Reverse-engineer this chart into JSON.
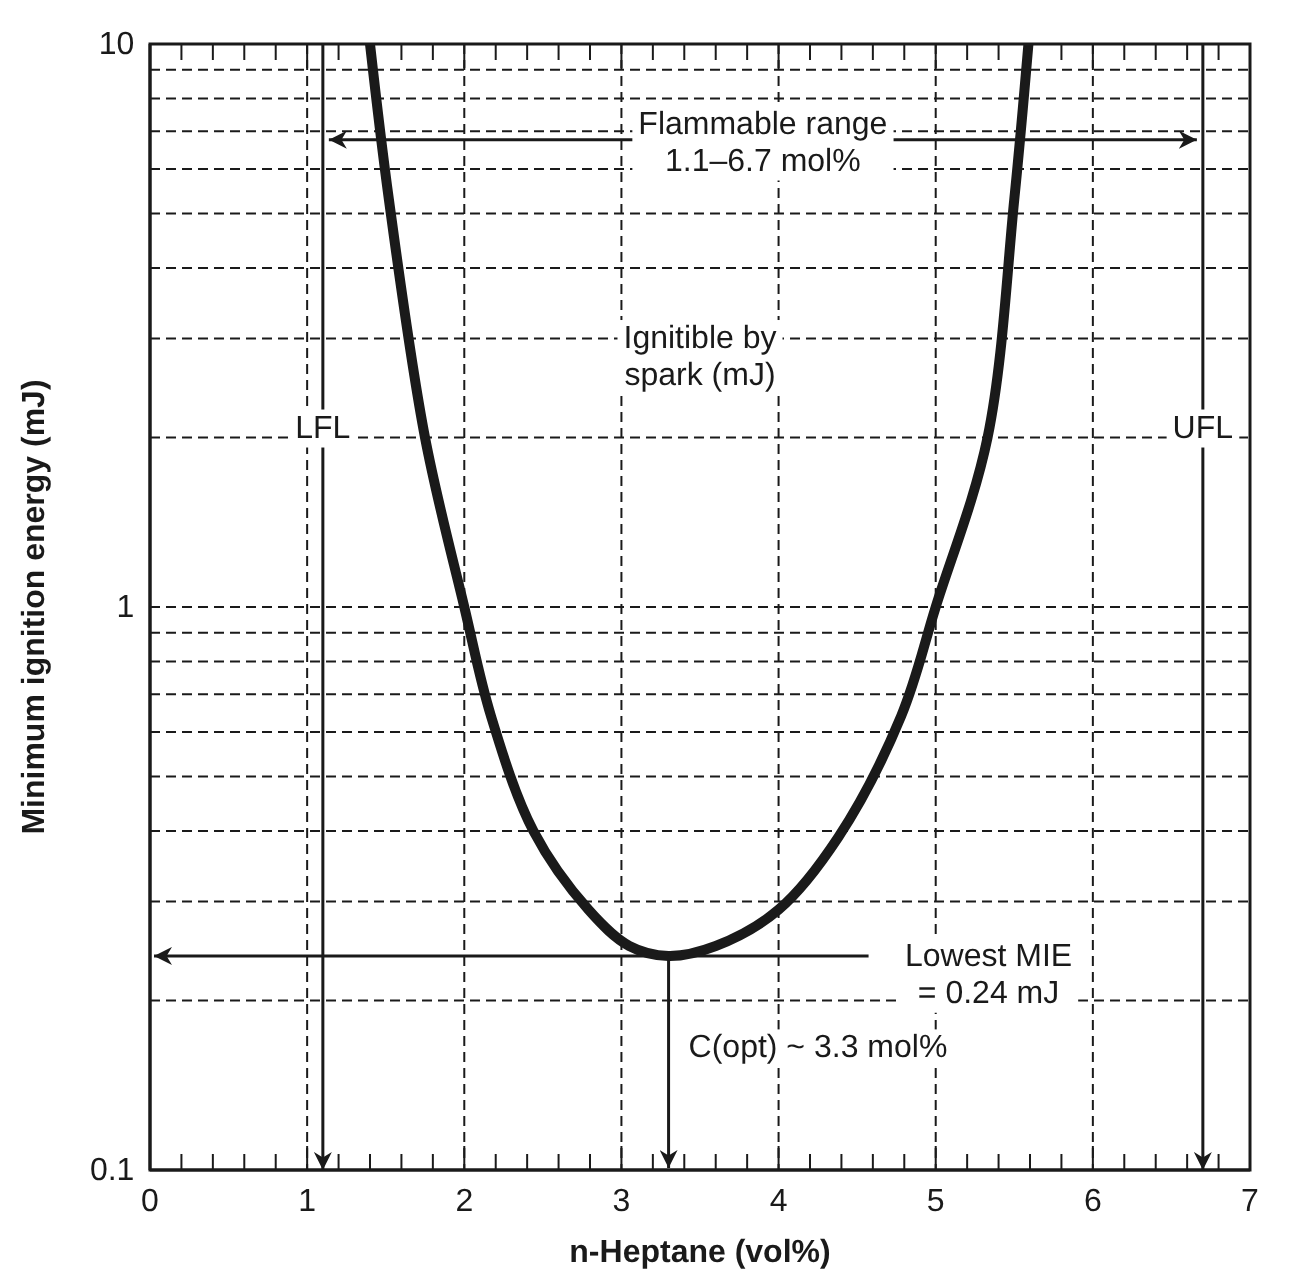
{
  "chart_data": {
    "type": "line",
    "xlabel": "n-Heptane (vol%)",
    "ylabel": "Minimum ignition energy (mJ)",
    "x": [
      1.4,
      1.52,
      1.75,
      2.0,
      2.17,
      2.44,
      2.79,
      3.05,
      3.3,
      3.6,
      4.0,
      4.38,
      4.78,
      5.0,
      5.33,
      5.5,
      5.59
    ],
    "series": [
      {
        "color": "#1a1a1a",
        "values": [
          10,
          5.3,
          2.0,
          1.0,
          0.64,
          0.4,
          0.29,
          0.25,
          0.24,
          0.25,
          0.29,
          0.39,
          0.64,
          1.0,
          2.0,
          5.3,
          10
        ]
      }
    ],
    "log": true,
    "grid": true,
    "marker": "none",
    "line_style": "solid",
    "xlim": [
      0,
      7
    ],
    "ylim": [
      0.1,
      10
    ],
    "xticks": [
      0,
      {
        "value": 0.2,
        "label": null
      },
      {
        "value": 0.4,
        "label": null
      },
      {
        "value": 0.6,
        "label": null
      },
      {
        "value": 0.8,
        "label": null
      },
      1,
      {
        "value": 1.2,
        "label": null
      },
      {
        "value": 1.4,
        "label": null
      },
      {
        "value": 1.6,
        "label": null
      },
      {
        "value": 1.8,
        "label": null
      },
      2,
      {
        "value": 2.2,
        "label": null
      },
      {
        "value": 2.4,
        "label": null
      },
      {
        "value": 2.6,
        "label": null
      },
      {
        "value": 2.8,
        "label": null
      },
      3,
      {
        "value": 3.2,
        "label": null
      },
      {
        "value": 3.4,
        "label": null
      },
      {
        "value": 3.6,
        "label": null
      },
      {
        "value": 3.8,
        "label": null
      },
      4,
      {
        "value": 4.2,
        "label": null
      },
      {
        "value": 4.4,
        "label": null
      },
      {
        "value": 4.6,
        "label": null
      },
      {
        "value": 4.8,
        "label": null
      },
      5,
      {
        "value": 5.2,
        "label": null
      },
      {
        "value": 5.4,
        "label": null
      },
      {
        "value": 5.6,
        "label": null
      },
      {
        "value": 5.8,
        "label": null
      },
      6,
      {
        "value": 6.2,
        "label": null
      },
      {
        "value": 6.4,
        "label": null
      },
      {
        "value": 6.6,
        "label": null
      },
      {
        "value": 6.8,
        "label": null
      },
      7
    ],
    "yticks": [
      0.1,
      {
        "value": 0.2,
        "label": null
      },
      {
        "value": 0.3,
        "label": null
      },
      {
        "value": 0.4,
        "label": null
      },
      {
        "value": 0.5,
        "label": null
      },
      {
        "value": 0.6,
        "label": null
      },
      {
        "value": 0.7,
        "label": null
      },
      {
        "value": 0.8,
        "label": null
      },
      {
        "value": 0.9,
        "label": null
      },
      1,
      {
        "value": 2,
        "label": null
      },
      {
        "value": 3,
        "label": null
      },
      {
        "value": 4,
        "label": null
      },
      {
        "value": 5,
        "label": null
      },
      {
        "value": 6,
        "label": null
      },
      {
        "value": 7,
        "label": null
      },
      {
        "value": 8,
        "label": null
      },
      {
        "value": 9,
        "label": null
      },
      10
    ],
    "ref_lines": [
      {
        "axis": "x",
        "value": 1.1,
        "label": "LFL",
        "color": "#1a1a1a",
        "line_style": "solid"
      },
      {
        "axis": "x",
        "value": 6.7,
        "label": "UFL",
        "color": "#1a1a1a",
        "line_style": "solid"
      }
    ],
    "annotations": [
      "Flammable range\n1.1–6.7 mol%",
      "Ignitible by\nspark (mJ)",
      "C(opt) ~ 3.3 mol%",
      {
        "text": "Lowest MIE\n= 0.24 mJ",
        "x": 3.3,
        "y": 0.24
      }
    ]
  }
}
